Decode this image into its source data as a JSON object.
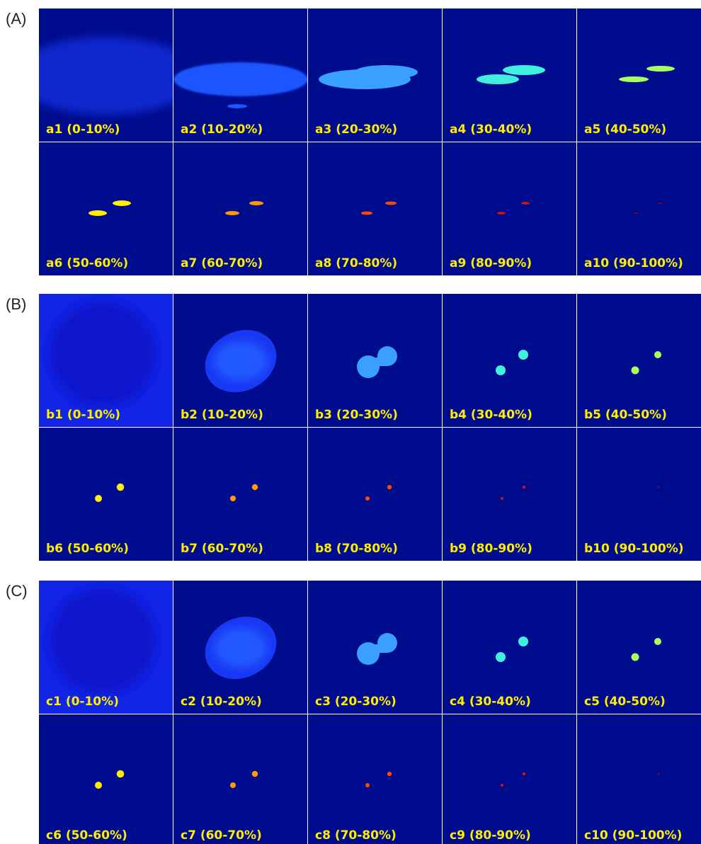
{
  "panels": [
    {
      "label": "(A)",
      "tiles": [
        "a1 (0-10%)",
        "a2 (10-20%)",
        "a3 (20-30%)",
        "a4 (30-40%)",
        "a5 (40-50%)",
        "a6 (50-60%)",
        "a7 (60-70%)",
        "a8 (70-80%)",
        "a9 (80-90%)",
        "a10 (90-100%)"
      ]
    },
    {
      "label": "(B)",
      "tiles": [
        "b1 (0-10%)",
        "b2 (10-20%)",
        "b3 (20-30%)",
        "b4 (30-40%)",
        "b5 (40-50%)",
        "b6 (50-60%)",
        "b7 (60-70%)",
        "b8 (70-80%)",
        "b9 (80-90%)",
        "b10 (90-100%)"
      ]
    },
    {
      "label": "(C)",
      "tiles": [
        "c1 (0-10%)",
        "c2 (10-20%)",
        "c3 (20-30%)",
        "c4 (30-40%)",
        "c5 (40-50%)",
        "c6 (50-60%)",
        "c7 (60-70%)",
        "c8 (70-80%)",
        "c9 (80-90%)",
        "c10 (90-100%)"
      ]
    }
  ]
}
